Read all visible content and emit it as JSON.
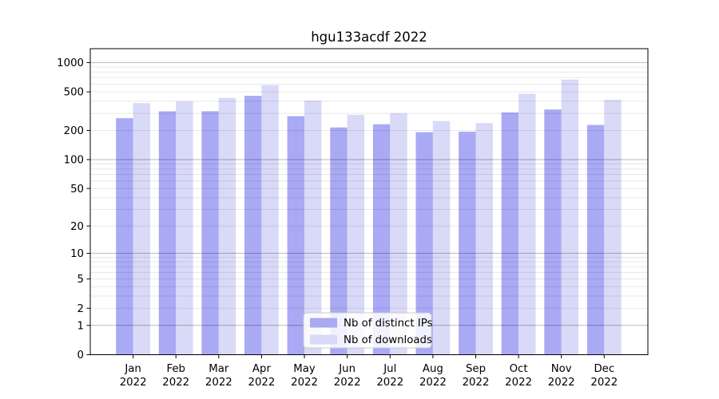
{
  "chart_data": {
    "type": "bar",
    "title": "hgu133acdf 2022",
    "categories": [
      "Jan",
      "Feb",
      "Mar",
      "Apr",
      "May",
      "Jun",
      "Jul",
      "Aug",
      "Sep",
      "Oct",
      "Nov",
      "Dec"
    ],
    "year_label": "2022",
    "series": [
      {
        "name": "Nb of distinct IPs",
        "color": "#a9a9f4",
        "values": [
          268,
          315,
          316,
          455,
          281,
          215,
          232,
          192,
          194,
          307,
          329,
          228
        ]
      },
      {
        "name": "Nb of downloads",
        "color": "#d9d9f8",
        "values": [
          383,
          400,
          433,
          587,
          407,
          290,
          302,
          250,
          238,
          477,
          669,
          415
        ]
      }
    ],
    "yscale": "log1p",
    "ylim": [
      0,
      1390
    ],
    "yticks": [
      0,
      1,
      2,
      5,
      10,
      20,
      50,
      100,
      200,
      500,
      1000
    ],
    "ytick_labels": [
      "0",
      "1",
      "2",
      "5",
      "10",
      "20",
      "50",
      "100",
      "200",
      "500",
      "1000"
    ],
    "grid": true,
    "legend_position": "lower center",
    "colors": {
      "major_grid": "rgba(0,0,0,0.28)",
      "minor_grid": "rgba(0,0,0,0.09)",
      "axis": "#000000",
      "legend_border": "#cccccc",
      "legend_bg": "rgba(255,255,255,0.85)"
    }
  }
}
